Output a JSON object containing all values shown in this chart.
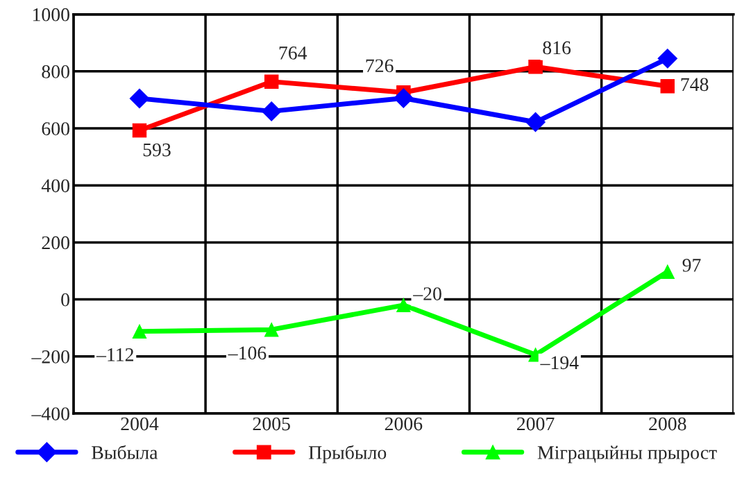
{
  "chart_data": {
    "type": "line",
    "categories": [
      "2004",
      "2005",
      "2006",
      "2007",
      "2008"
    ],
    "series": [
      {
        "name": "Выбыла",
        "color": "#0000ff",
        "marker": "diamond",
        "values": [
          705,
          660,
          706,
          622,
          845
        ]
      },
      {
        "name": "Прыбыло",
        "color": "#ff0000",
        "marker": "square",
        "values": [
          593,
          764,
          726,
          816,
          748
        ],
        "value_labels": [
          "593",
          "764",
          "726",
          "816",
          "748"
        ]
      },
      {
        "name": "Міграцыйны прырост",
        "color": "#00ff00",
        "marker": "triangle",
        "values": [
          -112,
          -106,
          -20,
          -194,
          97
        ],
        "value_labels": [
          "–112",
          "–106",
          "–20",
          "–194",
          "97"
        ]
      }
    ],
    "ylim": [
      -400,
      1000
    ],
    "yticks": [
      {
        "value": -400,
        "label": "–400"
      },
      {
        "value": -200,
        "label": "–200"
      },
      0,
      200,
      400,
      600,
      800,
      1000
    ],
    "grid": true,
    "legend": "bottom",
    "line_style": "solid"
  }
}
